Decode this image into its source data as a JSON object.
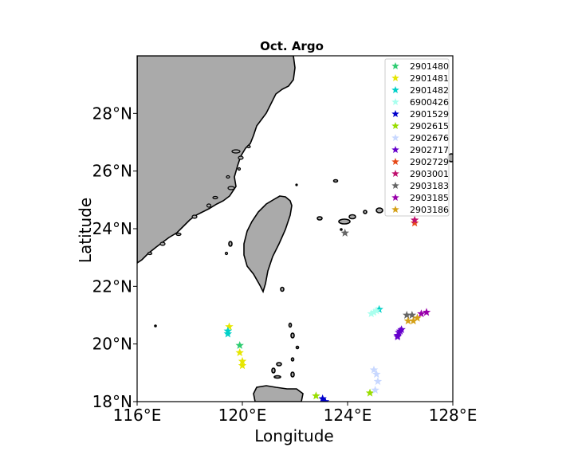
{
  "chart_data": {
    "type": "scatter",
    "title": "Oct.  Argo",
    "xlabel": "Longitude",
    "ylabel": "Latitude",
    "xlim": [
      116,
      128
    ],
    "ylim": [
      18,
      30
    ],
    "x_ticks": [
      116,
      120,
      124,
      128
    ],
    "x_tick_labels": [
      "116°E",
      "120°E",
      "124°E",
      "128°E"
    ],
    "y_ticks": [
      18,
      20,
      22,
      24,
      26,
      28
    ],
    "y_tick_labels": [
      "18°N",
      "20°N",
      "22°N",
      "24°N",
      "26°N",
      "28°N"
    ],
    "grid": false,
    "legend_position": "top-right",
    "land_color": "#aaaaaa",
    "marker": "star",
    "series": [
      {
        "name": "2901480",
        "color": "#2ecc71",
        "points": [
          [
            119.9,
            19.95
          ]
        ]
      },
      {
        "name": "2901481",
        "color": "#e6e600",
        "points": [
          [
            119.5,
            20.6
          ],
          [
            119.9,
            19.7
          ],
          [
            120.0,
            19.4
          ],
          [
            120.0,
            19.25
          ]
        ]
      },
      {
        "name": "2901482",
        "color": "#00d0c8",
        "points": [
          [
            119.45,
            20.45
          ],
          [
            119.45,
            20.35
          ],
          [
            125.2,
            21.2
          ]
        ]
      },
      {
        "name": "6900426",
        "color": "#aaffee",
        "points": [
          [
            124.9,
            21.05
          ],
          [
            125.0,
            21.1
          ],
          [
            125.1,
            21.15
          ]
        ]
      },
      {
        "name": "2901529",
        "color": "#0000cc",
        "points": [
          [
            123.05,
            18.1
          ],
          [
            123.15,
            18.0
          ]
        ]
      },
      {
        "name": "2902615",
        "color": "#99dd00",
        "points": [
          [
            122.8,
            18.2
          ],
          [
            124.85,
            18.3
          ]
        ]
      },
      {
        "name": "2902676",
        "color": "#c8d8ff",
        "points": [
          [
            125.0,
            19.1
          ],
          [
            125.1,
            18.95
          ],
          [
            125.15,
            18.7
          ],
          [
            125.05,
            18.4
          ]
        ]
      },
      {
        "name": "2902717",
        "color": "#6600cc",
        "points": [
          [
            125.9,
            20.3
          ],
          [
            125.95,
            20.4
          ],
          [
            126.0,
            20.45
          ],
          [
            126.05,
            20.5
          ],
          [
            125.9,
            20.25
          ]
        ]
      },
      {
        "name": "2902729",
        "color": "#e64a19",
        "points": [
          [
            126.55,
            24.2
          ]
        ]
      },
      {
        "name": "2903001",
        "color": "#c0106e",
        "points": [
          [
            126.55,
            24.3
          ]
        ]
      },
      {
        "name": "2903183",
        "color": "#666666",
        "points": [
          [
            123.9,
            23.85
          ],
          [
            126.25,
            21.0
          ],
          [
            126.45,
            21.0
          ]
        ]
      },
      {
        "name": "2903185",
        "color": "#9900aa",
        "points": [
          [
            126.8,
            21.05
          ],
          [
            127.0,
            21.1
          ]
        ]
      },
      {
        "name": "2903186",
        "color": "#d4a017",
        "points": [
          [
            126.3,
            20.8
          ],
          [
            126.5,
            20.8
          ],
          [
            126.65,
            20.9
          ]
        ]
      }
    ]
  }
}
